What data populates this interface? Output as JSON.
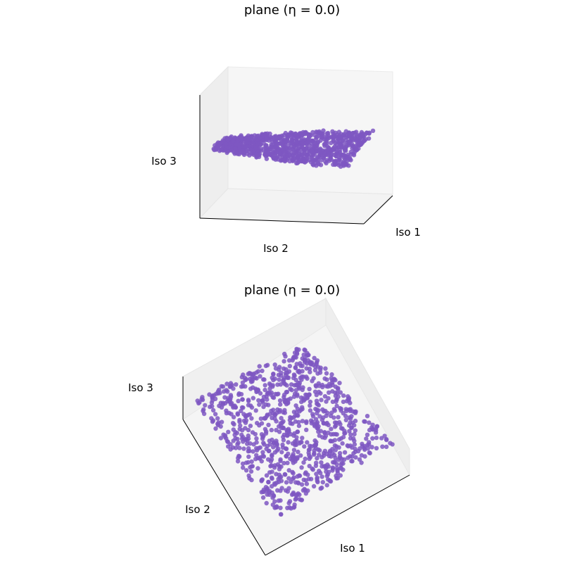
{
  "figure": {
    "background": "#ffffff",
    "pane_color": "#f2f2f2",
    "point_color": "#7e57c2"
  },
  "chart_data": [
    {
      "type": "scatter",
      "projection": "3d",
      "view": "tilted side view",
      "title": "plane (η = 0.0)",
      "xlabel": "Iso 1",
      "ylabel": "Iso 2",
      "zlabel": "Iso 3",
      "grid": false,
      "legend": "none",
      "series": [
        {
          "shape": "flat square sheet with slight curvature",
          "point_count_approx": 1000,
          "color": "#7e57c2"
        }
      ]
    },
    {
      "type": "scatter",
      "projection": "3d",
      "view": "top-down rotated view",
      "title": "plane (η = 0.0)",
      "xlabel": "Iso 1",
      "ylabel": "Iso 2",
      "zlabel": "Iso 3",
      "grid": false,
      "legend": "none",
      "series": [
        {
          "shape": "flat square sheet with slight curvature",
          "point_count_approx": 1000,
          "color": "#7e57c2"
        }
      ]
    }
  ]
}
